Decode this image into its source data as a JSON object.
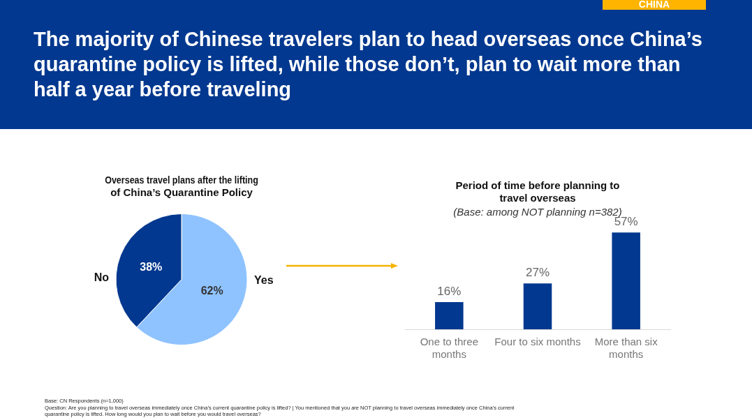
{
  "chart_data": [
    {
      "type": "pie",
      "title": "Overseas travel plans after the lifting of China’s Quarantine Policy",
      "categories": [
        "Yes",
        "No"
      ],
      "values": [
        62,
        38
      ],
      "colors": [
        "#8fc3ff",
        "#02388f"
      ],
      "value_labels": [
        "62%",
        "38%"
      ],
      "legend": false,
      "annotations": [
        "The majority of Chinese travelers plan to head overseas once China’s quarantine policy is lifted, while those don’t, plan to wait more than half a year before traveling",
        "CHINA",
        "Base: CN Respondents (n=1,000)",
        "Question: Are you planning to travel overseas immediately once China’s current quarantine policy is lifted? | You mentioned that you are NOT planning to travel overseas immediately once China’s current quarantine policy is lifted.   How long would you plan to wait before you would travel overseas?"
      ]
    },
    {
      "type": "bar",
      "title": "Period of time before planning to travel overseas",
      "subtitle": "(Base: among NOT planning n=382)",
      "categories": [
        "One to three months",
        "Four to six months",
        "More than six months"
      ],
      "values": [
        16,
        27,
        57
      ],
      "color": "#02388f",
      "value_labels": [
        "16%",
        "27%",
        "57%"
      ],
      "grid": false,
      "legend": false
    }
  ]
}
